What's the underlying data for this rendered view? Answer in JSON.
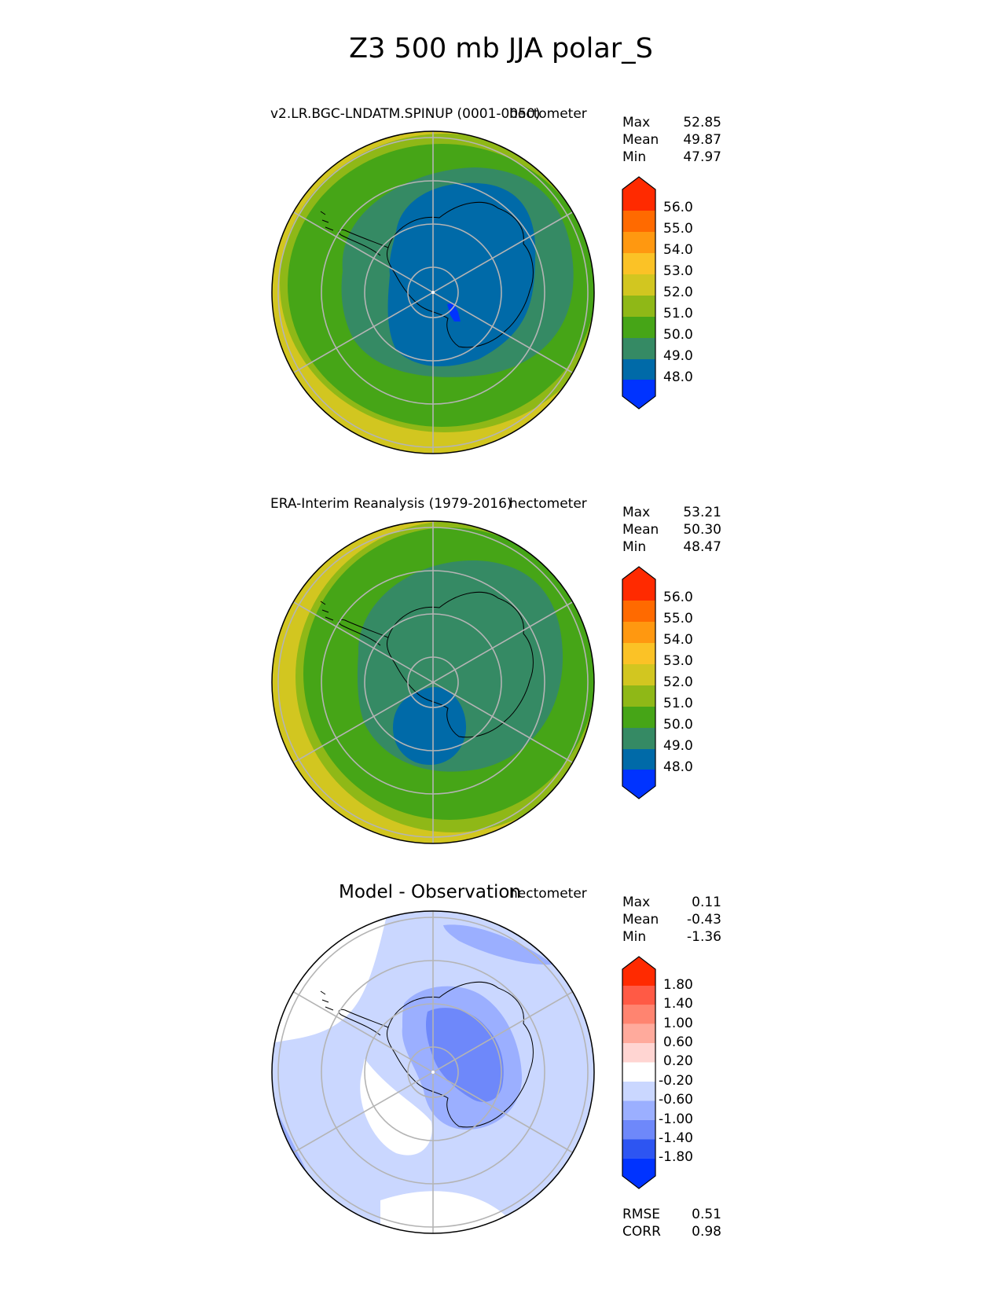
{
  "figure_title": "Z3 500 mb JJA polar_S",
  "colors": {
    "ref_palette": [
      "#0033ff",
      "#006aa8",
      "#358a64",
      "#46a517",
      "#8fb817",
      "#d2c620",
      "#fbc226",
      "#ff9810",
      "#ff6a00",
      "#ff2a00"
    ],
    "diff_palette": [
      "#0033ff",
      "#2d55f2",
      "#6e88fa",
      "#9bafff",
      "#cad7ff",
      "#ffffff",
      "#ffd5d2",
      "#ffaa9c",
      "#ff8470",
      "#ff5a45",
      "#ff2a00"
    ],
    "grid": "#b4b4b4",
    "coast": "#000000"
  },
  "panels": [
    {
      "title": "v2.LR.BGC-LNDATM.SPINUP (0001-0050)",
      "units": "hectometer",
      "stats": {
        "max_label": "Max",
        "max": "52.85",
        "mean_label": "Mean",
        "mean": "49.87",
        "min_label": "Min",
        "min": "47.97"
      },
      "colorbar_ticks": [
        "56.0",
        "55.0",
        "54.0",
        "53.0",
        "52.0",
        "51.0",
        "50.0",
        "49.0",
        "48.0"
      ]
    },
    {
      "title": "ERA-Interim Reanalysis (1979-2016)",
      "units": "hectometer",
      "stats": {
        "max_label": "Max",
        "max": "53.21",
        "mean_label": "Mean",
        "mean": "50.30",
        "min_label": "Min",
        "min": "48.47"
      },
      "colorbar_ticks": [
        "56.0",
        "55.0",
        "54.0",
        "53.0",
        "52.0",
        "51.0",
        "50.0",
        "49.0",
        "48.0"
      ]
    },
    {
      "title": "Model - Observation",
      "units": "hectometer",
      "stats": {
        "max_label": "Max",
        "max": "0.11",
        "mean_label": "Mean",
        "mean": "-0.43",
        "min_label": "Min",
        "min": "-1.36"
      },
      "colorbar_ticks": [
        "1.80",
        "1.40",
        "1.00",
        "0.60",
        "0.20",
        "-0.20",
        "-0.60",
        "-1.00",
        "-1.40",
        "-1.80"
      ],
      "metrics": {
        "rmse_label": "RMSE",
        "rmse": "0.51",
        "corr_label": "CORR",
        "corr": "0.98"
      }
    }
  ],
  "chart_data": [
    {
      "type": "heatmap",
      "projection": "south-polar-stereographic",
      "variable": "Z3 500 mb JJA",
      "title": "v2.LR.BGC-LNDATM.SPINUP (0001-0050)",
      "units": "hectometer",
      "levels": [
        48,
        49,
        50,
        51,
        52,
        53,
        54,
        55,
        56
      ],
      "extend": "both",
      "max": 52.85,
      "mean": 49.87,
      "min": 47.97
    },
    {
      "type": "heatmap",
      "projection": "south-polar-stereographic",
      "variable": "Z3 500 mb JJA",
      "title": "ERA-Interim Reanalysis (1979-2016)",
      "units": "hectometer",
      "levels": [
        48,
        49,
        50,
        51,
        52,
        53,
        54,
        55,
        56
      ],
      "extend": "both",
      "max": 53.21,
      "mean": 50.3,
      "min": 48.47
    },
    {
      "type": "heatmap",
      "projection": "south-polar-stereographic",
      "variable": "Z3 500 mb JJA difference",
      "title": "Model - Observation",
      "units": "hectometer",
      "levels": [
        -1.8,
        -1.4,
        -1.0,
        -0.6,
        -0.2,
        0.2,
        0.6,
        1.0,
        1.4,
        1.8
      ],
      "extend": "both",
      "max": 0.11,
      "mean": -0.43,
      "min": -1.36,
      "rmse": 0.51,
      "corr": 0.98
    }
  ]
}
